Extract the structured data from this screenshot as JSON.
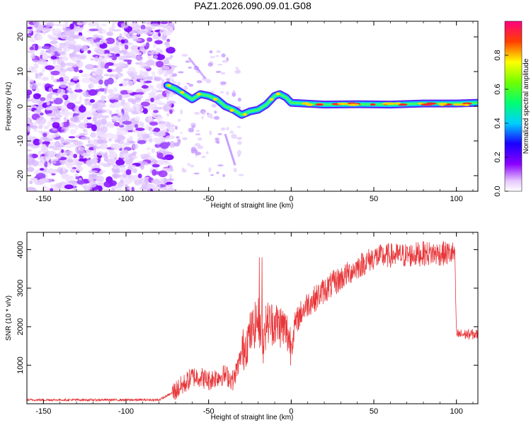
{
  "title": "PAZ1.2026.090.09.01.G08",
  "chart_data": [
    {
      "type": "heatmap",
      "title": "PAZ1.2026.090.09.01.G08",
      "xlabel": "Height of straight line (km)",
      "ylabel": "Frequency (Hz)",
      "xlim": [
        -160,
        113
      ],
      "ylim": [
        -24.5,
        24.5
      ],
      "xticks": [
        -150,
        -100,
        -50,
        0,
        50,
        100
      ],
      "yticks": [
        -20,
        -10,
        0,
        10,
        20
      ],
      "colorbar": {
        "label": "Normalized spectral amplitude",
        "range": [
          0,
          1
        ],
        "ticks": [
          "0.0",
          "0.2",
          "0.4",
          "0.6",
          "0.8"
        ]
      },
      "ridge": [
        {
          "x": -75,
          "y": 6
        },
        {
          "x": -70,
          "y": 5
        },
        {
          "x": -65,
          "y": 3.5
        },
        {
          "x": -60,
          "y": 2
        },
        {
          "x": -55,
          "y": 3.5
        },
        {
          "x": -50,
          "y": 3
        },
        {
          "x": -45,
          "y": 2
        },
        {
          "x": -40,
          "y": 0
        },
        {
          "x": -35,
          "y": -1
        },
        {
          "x": -30,
          "y": -2.5
        },
        {
          "x": -25,
          "y": -1.5
        },
        {
          "x": -20,
          "y": -1
        },
        {
          "x": -15,
          "y": 0.5
        },
        {
          "x": -10,
          "y": 3
        },
        {
          "x": -7,
          "y": 3.5
        },
        {
          "x": -3,
          "y": 2.5
        },
        {
          "x": 0,
          "y": 1
        },
        {
          "x": 20,
          "y": 0.5
        },
        {
          "x": 40,
          "y": 0.6
        },
        {
          "x": 60,
          "y": 0.5
        },
        {
          "x": 80,
          "y": 0.8
        },
        {
          "x": 100,
          "y": 0.8
        },
        {
          "x": 113,
          "y": 1
        }
      ]
    },
    {
      "type": "line",
      "xlabel": "Height of straight line (km)",
      "ylabel": "SNR (10 * v/v)",
      "xlim": [
        -160,
        113
      ],
      "ylim": [
        0,
        4450
      ],
      "xticks": [
        -150,
        -100,
        -50,
        0,
        50,
        100
      ],
      "yticks": [
        1000,
        2000,
        3000,
        4000
      ],
      "series": [
        {
          "name": "SNR",
          "color": "#e8373a",
          "envelope": {
            "x": [
              -160,
              -80,
              -72,
              -65,
              -60,
              -55,
              -50,
              -45,
              -40,
              -35,
              -30,
              -25,
              -20,
              -17,
              -15,
              -10,
              -5,
              -2,
              0,
              2,
              5,
              10,
              15,
              20,
              30,
              40,
              50,
              60,
              70,
              80,
              90,
              98,
              99,
              100,
              105,
              113
            ],
            "y": [
              100,
              100,
              280,
              500,
              700,
              700,
              600,
              700,
              750,
              600,
              1300,
              1800,
              2200,
              1600,
              2100,
              2100,
              2000,
              1800,
              1500,
              2000,
              2300,
              2600,
              2750,
              2950,
              3250,
              3550,
              3800,
              3850,
              3850,
              3900,
              3900,
              3900,
              3900,
              1800,
              1800,
              1800
            ]
          }
        }
      ]
    }
  ]
}
